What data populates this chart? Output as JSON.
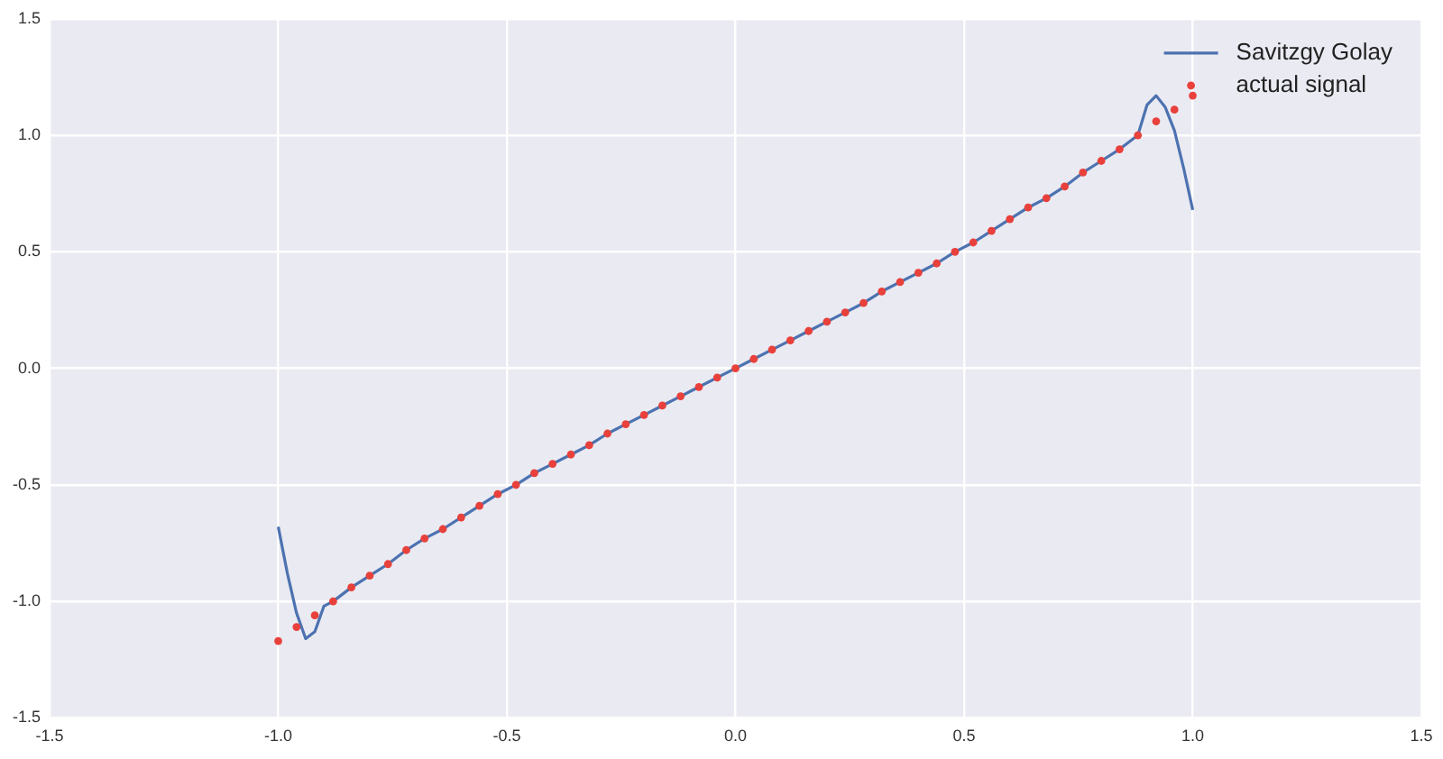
{
  "chart_data": {
    "type": "scatter",
    "xlim": [
      -1.5,
      1.5
    ],
    "ylim": [
      -1.5,
      1.5
    ],
    "xticks": [
      {
        "value": -1.5,
        "label": "-1.5"
      },
      {
        "value": -1,
        "label": "-1.0"
      },
      {
        "value": -0.5,
        "label": "-0.5"
      },
      {
        "value": 0,
        "label": "0.0"
      },
      {
        "value": 0.5,
        "label": "0.5"
      },
      {
        "value": 1,
        "label": "1.0"
      },
      {
        "value": 1.5,
        "label": "1.5"
      }
    ],
    "yticks": [
      {
        "value": -1.5,
        "label": "-1.5"
      },
      {
        "value": -1,
        "label": "-1.0"
      },
      {
        "value": -0.5,
        "label": "-0.5"
      },
      {
        "value": 0,
        "label": "0.0"
      },
      {
        "value": 0.5,
        "label": "0.5"
      },
      {
        "value": 1,
        "label": "1.0"
      },
      {
        "value": 1.5,
        "label": "1.5"
      }
    ],
    "grid": true,
    "legend": "top right",
    "series": [
      {
        "name": "Savitzgy Golay",
        "type": "line",
        "color": "#4c72b0",
        "marker": "none",
        "line_style": "solid",
        "x": [
          -1,
          -0.98,
          -0.96,
          -0.94,
          -0.92,
          -0.9,
          -0.88,
          -0.84,
          -0.8,
          -0.76,
          -0.72,
          -0.68,
          -0.64,
          -0.6,
          -0.56,
          -0.52,
          -0.48,
          -0.44,
          -0.4,
          -0.36,
          -0.32,
          -0.28,
          -0.24,
          -0.2,
          -0.16,
          -0.12,
          -0.08,
          -0.04,
          0,
          0.04,
          0.08,
          0.12,
          0.16,
          0.2,
          0.24,
          0.28,
          0.32,
          0.36,
          0.4,
          0.44,
          0.48,
          0.52,
          0.56,
          0.6,
          0.64,
          0.68,
          0.72,
          0.76,
          0.8,
          0.84,
          0.88,
          0.9,
          0.92,
          0.94,
          0.96,
          0.98,
          1
        ],
        "values": [
          -0.68,
          -0.88,
          -1.05,
          -1.16,
          -1.13,
          -1.02,
          -1,
          -0.94,
          -0.89,
          -0.84,
          -0.78,
          -0.73,
          -0.69,
          -0.64,
          -0.59,
          -0.54,
          -0.5,
          -0.45,
          -0.41,
          -0.37,
          -0.33,
          -0.28,
          -0.24,
          -0.2,
          -0.16,
          -0.12,
          -0.08,
          -0.04,
          0,
          0.04,
          0.08,
          0.12,
          0.16,
          0.2,
          0.24,
          0.28,
          0.33,
          0.37,
          0.41,
          0.45,
          0.5,
          0.54,
          0.59,
          0.64,
          0.69,
          0.73,
          0.78,
          0.84,
          0.89,
          0.94,
          1,
          1.13,
          1.17,
          1.12,
          1.02,
          0.86,
          0.68
        ]
      },
      {
        "name": "actual signal",
        "type": "scatter",
        "color": "#e8413c",
        "marker": "circle",
        "x": [
          -1,
          -0.96,
          -0.92,
          -0.88,
          -0.84,
          -0.8,
          -0.76,
          -0.72,
          -0.68,
          -0.64,
          -0.6,
          -0.56,
          -0.52,
          -0.48,
          -0.44,
          -0.4,
          -0.36,
          -0.32,
          -0.28,
          -0.24,
          -0.2,
          -0.16,
          -0.12,
          -0.08,
          -0.04,
          0,
          0.04,
          0.08,
          0.12,
          0.16,
          0.2,
          0.24,
          0.28,
          0.32,
          0.36,
          0.4,
          0.44,
          0.48,
          0.52,
          0.56,
          0.6,
          0.64,
          0.68,
          0.72,
          0.76,
          0.8,
          0.84,
          0.88,
          0.92,
          0.96,
          1
        ],
        "values": [
          -1.17,
          -1.11,
          -1.06,
          -1,
          -0.94,
          -0.89,
          -0.84,
          -0.78,
          -0.73,
          -0.69,
          -0.64,
          -0.59,
          -0.54,
          -0.5,
          -0.45,
          -0.41,
          -0.37,
          -0.33,
          -0.28,
          -0.24,
          -0.2,
          -0.16,
          -0.12,
          -0.08,
          -0.04,
          0,
          0.04,
          0.08,
          0.12,
          0.16,
          0.2,
          0.24,
          0.28,
          0.33,
          0.37,
          0.41,
          0.45,
          0.5,
          0.54,
          0.59,
          0.64,
          0.69,
          0.73,
          0.78,
          0.84,
          0.89,
          0.94,
          1,
          1.06,
          1.11,
          1.17
        ]
      }
    ]
  }
}
